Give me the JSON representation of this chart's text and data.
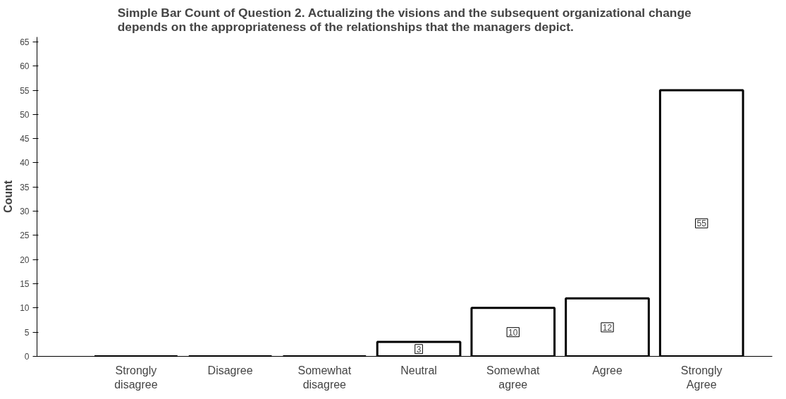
{
  "chart_data": {
    "type": "bar",
    "title": "Simple Bar Count of Question 2. Actualizing the visions and the subsequent organizational change depends on the appropriateness of the relationships that the managers depict.",
    "ylabel": "Count",
    "categories": [
      "Strongly disagree",
      "Disagree",
      "Somewhat disagree",
      "Neutral",
      "Somewhat agree",
      "Agree",
      "Strongly Agree"
    ],
    "values": [
      0,
      0,
      0,
      3,
      10,
      12,
      55
    ],
    "value_labels": [
      null,
      null,
      null,
      "3",
      "10",
      "12",
      "55"
    ],
    "color": "#ffffff",
    "ylim": [
      0,
      66
    ],
    "yticks": [
      0,
      5,
      10,
      15,
      20,
      25,
      30,
      35,
      40,
      45,
      50,
      55,
      60,
      65
    ],
    "grid": false
  }
}
